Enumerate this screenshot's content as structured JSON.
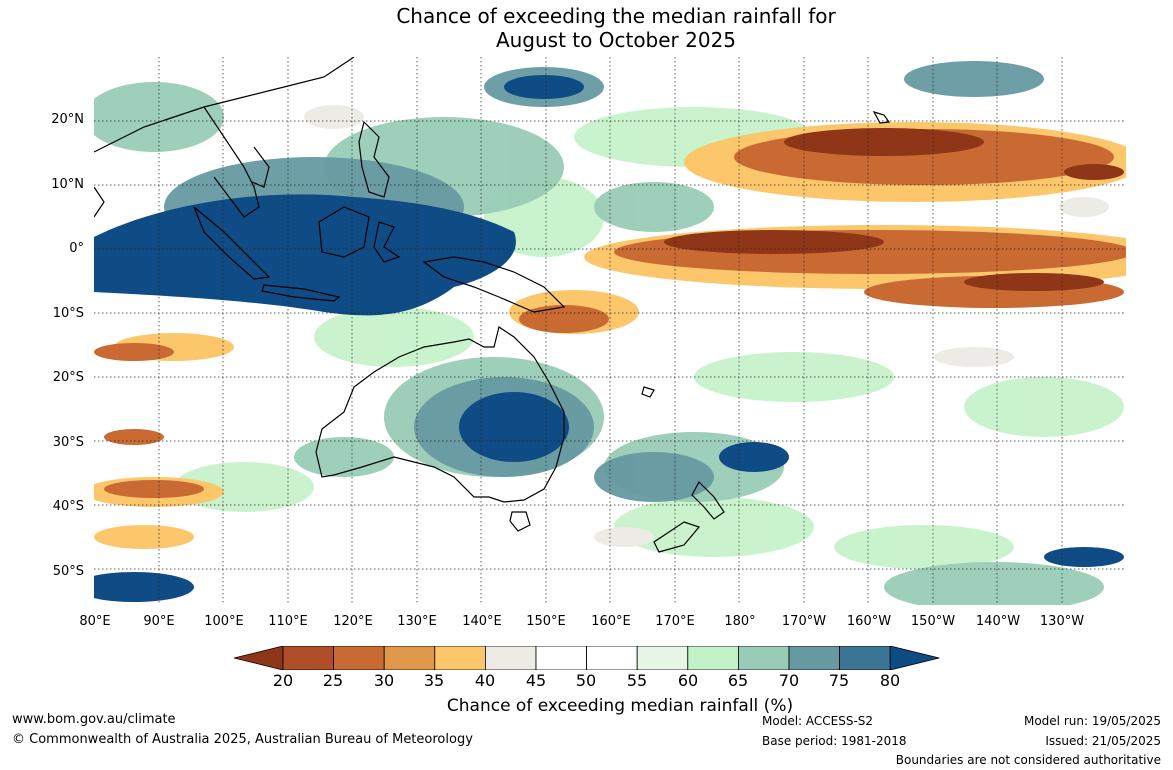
{
  "title": {
    "line1": "Chance of exceeding the median rainfall for",
    "line2": "August to October 2025"
  },
  "map": {
    "lat_labels": [
      "20°N",
      "10°N",
      "0°",
      "10°S",
      "20°S",
      "30°S",
      "40°S",
      "50°S"
    ],
    "lon_labels": [
      "80°E",
      "90°E",
      "100°E",
      "110°E",
      "120°E",
      "130°E",
      "140°E",
      "150°E",
      "160°E",
      "170°E",
      "180°",
      "170°W",
      "160°W",
      "150°W",
      "140°W",
      "130°W"
    ]
  },
  "colorbar": {
    "ticks": [
      "20",
      "25",
      "30",
      "35",
      "40",
      "45",
      "50",
      "55",
      "60",
      "65",
      "70",
      "75",
      "80"
    ],
    "colors": [
      "#8f3619",
      "#b14e2a",
      "#c96a33",
      "#e0984a",
      "#fcc76b",
      "#ecebe6",
      "#ffffff",
      "#ffffff",
      "#e6f5e6",
      "#c4f2c8",
      "#99ccb6",
      "#6699a1",
      "#3c7493",
      "#0f4b85"
    ],
    "label": "Chance of exceeding median rainfall (%)"
  },
  "footer": {
    "website": "www.bom.gov.au/climate",
    "copyright": "© Commonwealth of Australia 2025, Australian Bureau of Meteorology",
    "model": "Model: ACCESS-S2",
    "base_period": "Base period: 1981-2018",
    "model_run": "Model run: 19/05/2025",
    "issued": "Issued: 21/05/2025",
    "disclaimer": "Boundaries are not considered authoritative"
  }
}
